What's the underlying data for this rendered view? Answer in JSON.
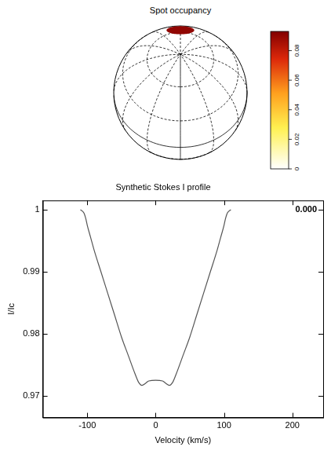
{
  "sphere": {
    "title": "Spot occupancy",
    "colorbar": {
      "range": [
        0,
        0.093
      ],
      "ticks": [
        0,
        0.02,
        0.04,
        0.06,
        0.08
      ]
    },
    "spot_occupancy": 0.09
  },
  "chart_data": {
    "type": "line",
    "title": "Synthetic Stokes I profile",
    "x_label": "Velocity (km/s)",
    "y_label": "I/Ic",
    "annotation": "0.000",
    "x": [
      -110,
      -105,
      -102,
      -100,
      -95,
      -90,
      -80,
      -70,
      -60,
      -50,
      -40,
      -30,
      -25,
      -20,
      -15,
      -10,
      0,
      10,
      15,
      20,
      25,
      30,
      40,
      50,
      60,
      70,
      80,
      90,
      95,
      100,
      102,
      105,
      110
    ],
    "values": [
      1.0,
      0.9995,
      0.9985,
      0.9975,
      0.9955,
      0.9935,
      0.99,
      0.9865,
      0.983,
      0.9795,
      0.9765,
      0.9735,
      0.9722,
      0.9717,
      0.972,
      0.9724,
      0.9725,
      0.9724,
      0.972,
      0.9717,
      0.9722,
      0.9735,
      0.9765,
      0.9795,
      0.983,
      0.9865,
      0.99,
      0.9935,
      0.9955,
      0.9975,
      0.9985,
      0.9995,
      1.0
    ],
    "color": "#555555",
    "xlim": [
      -165,
      245
    ],
    "ylim": [
      0.9665,
      1.0015
    ],
    "xticks": [
      -100,
      0,
      100,
      200
    ],
    "yticks": [
      0.97,
      0.98,
      0.99,
      1
    ],
    "grid": false
  }
}
